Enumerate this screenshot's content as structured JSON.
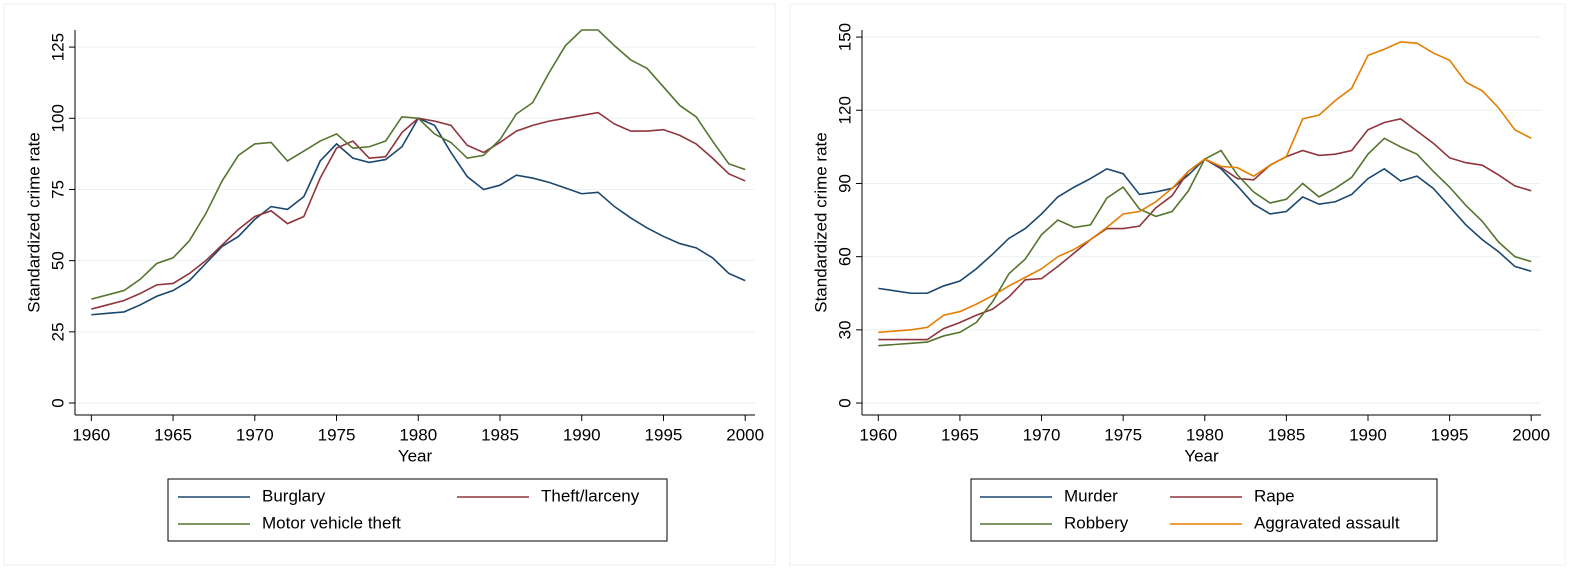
{
  "chart_data": [
    {
      "type": "line",
      "xlabel": "Year",
      "ylabel": "Standardized crime rate",
      "x": [
        1960,
        1961,
        1962,
        1963,
        1964,
        1965,
        1966,
        1967,
        1968,
        1969,
        1970,
        1971,
        1972,
        1973,
        1974,
        1975,
        1976,
        1977,
        1978,
        1979,
        1980,
        1981,
        1982,
        1983,
        1984,
        1985,
        1986,
        1987,
        1988,
        1989,
        1990,
        1991,
        1992,
        1993,
        1994,
        1995,
        1996,
        1997,
        1998,
        1999,
        2000
      ],
      "series": [
        {
          "name": "Burglary",
          "color": "#1a476f",
          "values": [
            31,
            31.5,
            32,
            34.5,
            37.5,
            39.5,
            43,
            49,
            55,
            58.5,
            64.5,
            69,
            68,
            72.5,
            85,
            91,
            86,
            84.5,
            85.5,
            90,
            100,
            97.5,
            88,
            79.5,
            75,
            76.5,
            80,
            79,
            77.5,
            75.5,
            73.5,
            74,
            69,
            65,
            61.5,
            58.5,
            56,
            54.5,
            51,
            45.5,
            43
          ]
        },
        {
          "name": "Theft/larceny",
          "color": "#90353b",
          "values": [
            33,
            34.5,
            36,
            38.5,
            41.5,
            42,
            45.5,
            50,
            55.5,
            61,
            65.5,
            67.5,
            63,
            65.5,
            79,
            89.5,
            92,
            86,
            86.5,
            95,
            100,
            99,
            97.5,
            90.5,
            88,
            91.5,
            95.5,
            97.5,
            99,
            100,
            101,
            102,
            98,
            95.5,
            95.5,
            96,
            94,
            91,
            86,
            80.5,
            78
          ]
        },
        {
          "name": "Motor vehicle theft",
          "color": "#55752f",
          "values": [
            36.5,
            38,
            39.5,
            43.5,
            49,
            51,
            57,
            66.5,
            78,
            87,
            91,
            91.5,
            85,
            88.5,
            92,
            94.5,
            89.5,
            90,
            92,
            100.5,
            100,
            94.5,
            91.5,
            86,
            87,
            92.5,
            101.5,
            105.5,
            116,
            125.5,
            131,
            131,
            125.5,
            120.5,
            117.5,
            111,
            104.5,
            100.5,
            92,
            84,
            82
          ]
        }
      ],
      "xlim": [
        1959,
        2000.6
      ],
      "ylim": [
        -4.2,
        131
      ],
      "xticks": [
        1960,
        1965,
        1970,
        1975,
        1980,
        1985,
        1990,
        1995,
        2000
      ],
      "yticks": [
        0,
        25,
        50,
        75,
        100,
        125
      ],
      "grid": true,
      "legend": "bottom"
    },
    {
      "type": "line",
      "xlabel": "Year",
      "ylabel": "Standardized crime rate",
      "x": [
        1960,
        1961,
        1962,
        1963,
        1964,
        1965,
        1966,
        1967,
        1968,
        1969,
        1970,
        1971,
        1972,
        1973,
        1974,
        1975,
        1976,
        1977,
        1978,
        1979,
        1980,
        1981,
        1982,
        1983,
        1984,
        1985,
        1986,
        1987,
        1988,
        1989,
        1990,
        1991,
        1992,
        1993,
        1994,
        1995,
        1996,
        1997,
        1998,
        1999,
        2000
      ],
      "series": [
        {
          "name": "Murder",
          "color": "#1a476f",
          "values": [
            47,
            46,
            45,
            45,
            48,
            50,
            55,
            61,
            67.5,
            71.5,
            77.5,
            84.5,
            88.5,
            92,
            96,
            94,
            85.5,
            86.5,
            88,
            93.5,
            100,
            96,
            89,
            81.5,
            77.5,
            78.5,
            84.5,
            81.5,
            82.5,
            85.5,
            92,
            96,
            91,
            93,
            88,
            80.5,
            73,
            67,
            62,
            56,
            54
          ]
        },
        {
          "name": "Rape",
          "color": "#90353b",
          "values": [
            26,
            26,
            26,
            26,
            30.5,
            33,
            36,
            38.5,
            43.5,
            50.5,
            51,
            56,
            61.5,
            67,
            71.5,
            71.5,
            72.5,
            80,
            85,
            95,
            100,
            96.5,
            92,
            91.5,
            97.5,
            101,
            103.5,
            101.5,
            102,
            103.5,
            112,
            115,
            116.5,
            111.5,
            106.5,
            100.5,
            98.5,
            97.5,
            93.5,
            89,
            87
          ]
        },
        {
          "name": "Robbery",
          "color": "#55752f",
          "values": [
            23.5,
            24,
            24.5,
            25,
            27.5,
            29,
            33,
            41.5,
            53,
            59,
            69,
            75,
            72,
            73,
            84,
            88.5,
            79.5,
            76.5,
            78.5,
            87,
            100,
            103.5,
            93.5,
            86.5,
            82,
            83.5,
            90,
            84.5,
            88,
            92.5,
            102,
            108.5,
            105,
            102,
            95,
            88.5,
            81,
            74.5,
            66,
            60,
            58
          ]
        },
        {
          "name": "Aggravated assault",
          "color": "#e37e00",
          "values": [
            29,
            29.5,
            30,
            31,
            36,
            37.5,
            40.5,
            44,
            48,
            51.5,
            55,
            60,
            63,
            67,
            72,
            77.5,
            78.5,
            82.5,
            88,
            95,
            100,
            97,
            96.5,
            93,
            97.5,
            101,
            116.5,
            118,
            124,
            129,
            142.5,
            145,
            148,
            147.5,
            143.5,
            140.5,
            131.5,
            128,
            121,
            112,
            108.5
          ]
        }
      ],
      "xlim": [
        1959,
        2000.6
      ],
      "ylim": [
        -4.9,
        152.9
      ],
      "xticks": [
        1960,
        1965,
        1970,
        1975,
        1980,
        1985,
        1990,
        1995,
        2000
      ],
      "yticks": [
        0,
        30,
        60,
        90,
        120,
        150
      ],
      "grid": true,
      "legend": "bottom"
    }
  ]
}
